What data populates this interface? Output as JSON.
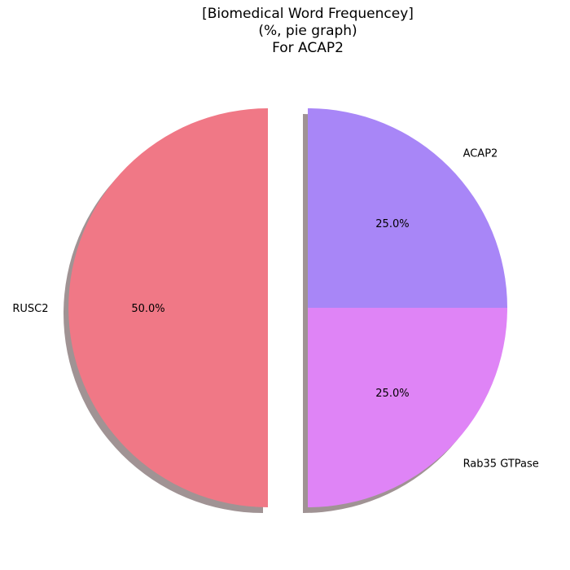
{
  "chart_data": {
    "type": "pie",
    "title_lines": [
      "[Biomedical Word Frequencey]",
      "(%, pie graph)",
      "For ACAP2"
    ],
    "slices": [
      {
        "label": "ACAP2",
        "value": 25.0,
        "pct_label": "25.0%",
        "color": "#a886f7",
        "explode": false
      },
      {
        "label": "Rab35 GTPase",
        "value": 25.0,
        "pct_label": "25.0%",
        "color": "#df84f6",
        "explode": false
      },
      {
        "label": "RUSC2",
        "value": 50.0,
        "pct_label": "50.0%",
        "color": "#f07886",
        "explode": true
      }
    ],
    "start_angle_deg": 90,
    "direction": "clockwise",
    "shadow": true,
    "shadow_color": "#a09394"
  }
}
